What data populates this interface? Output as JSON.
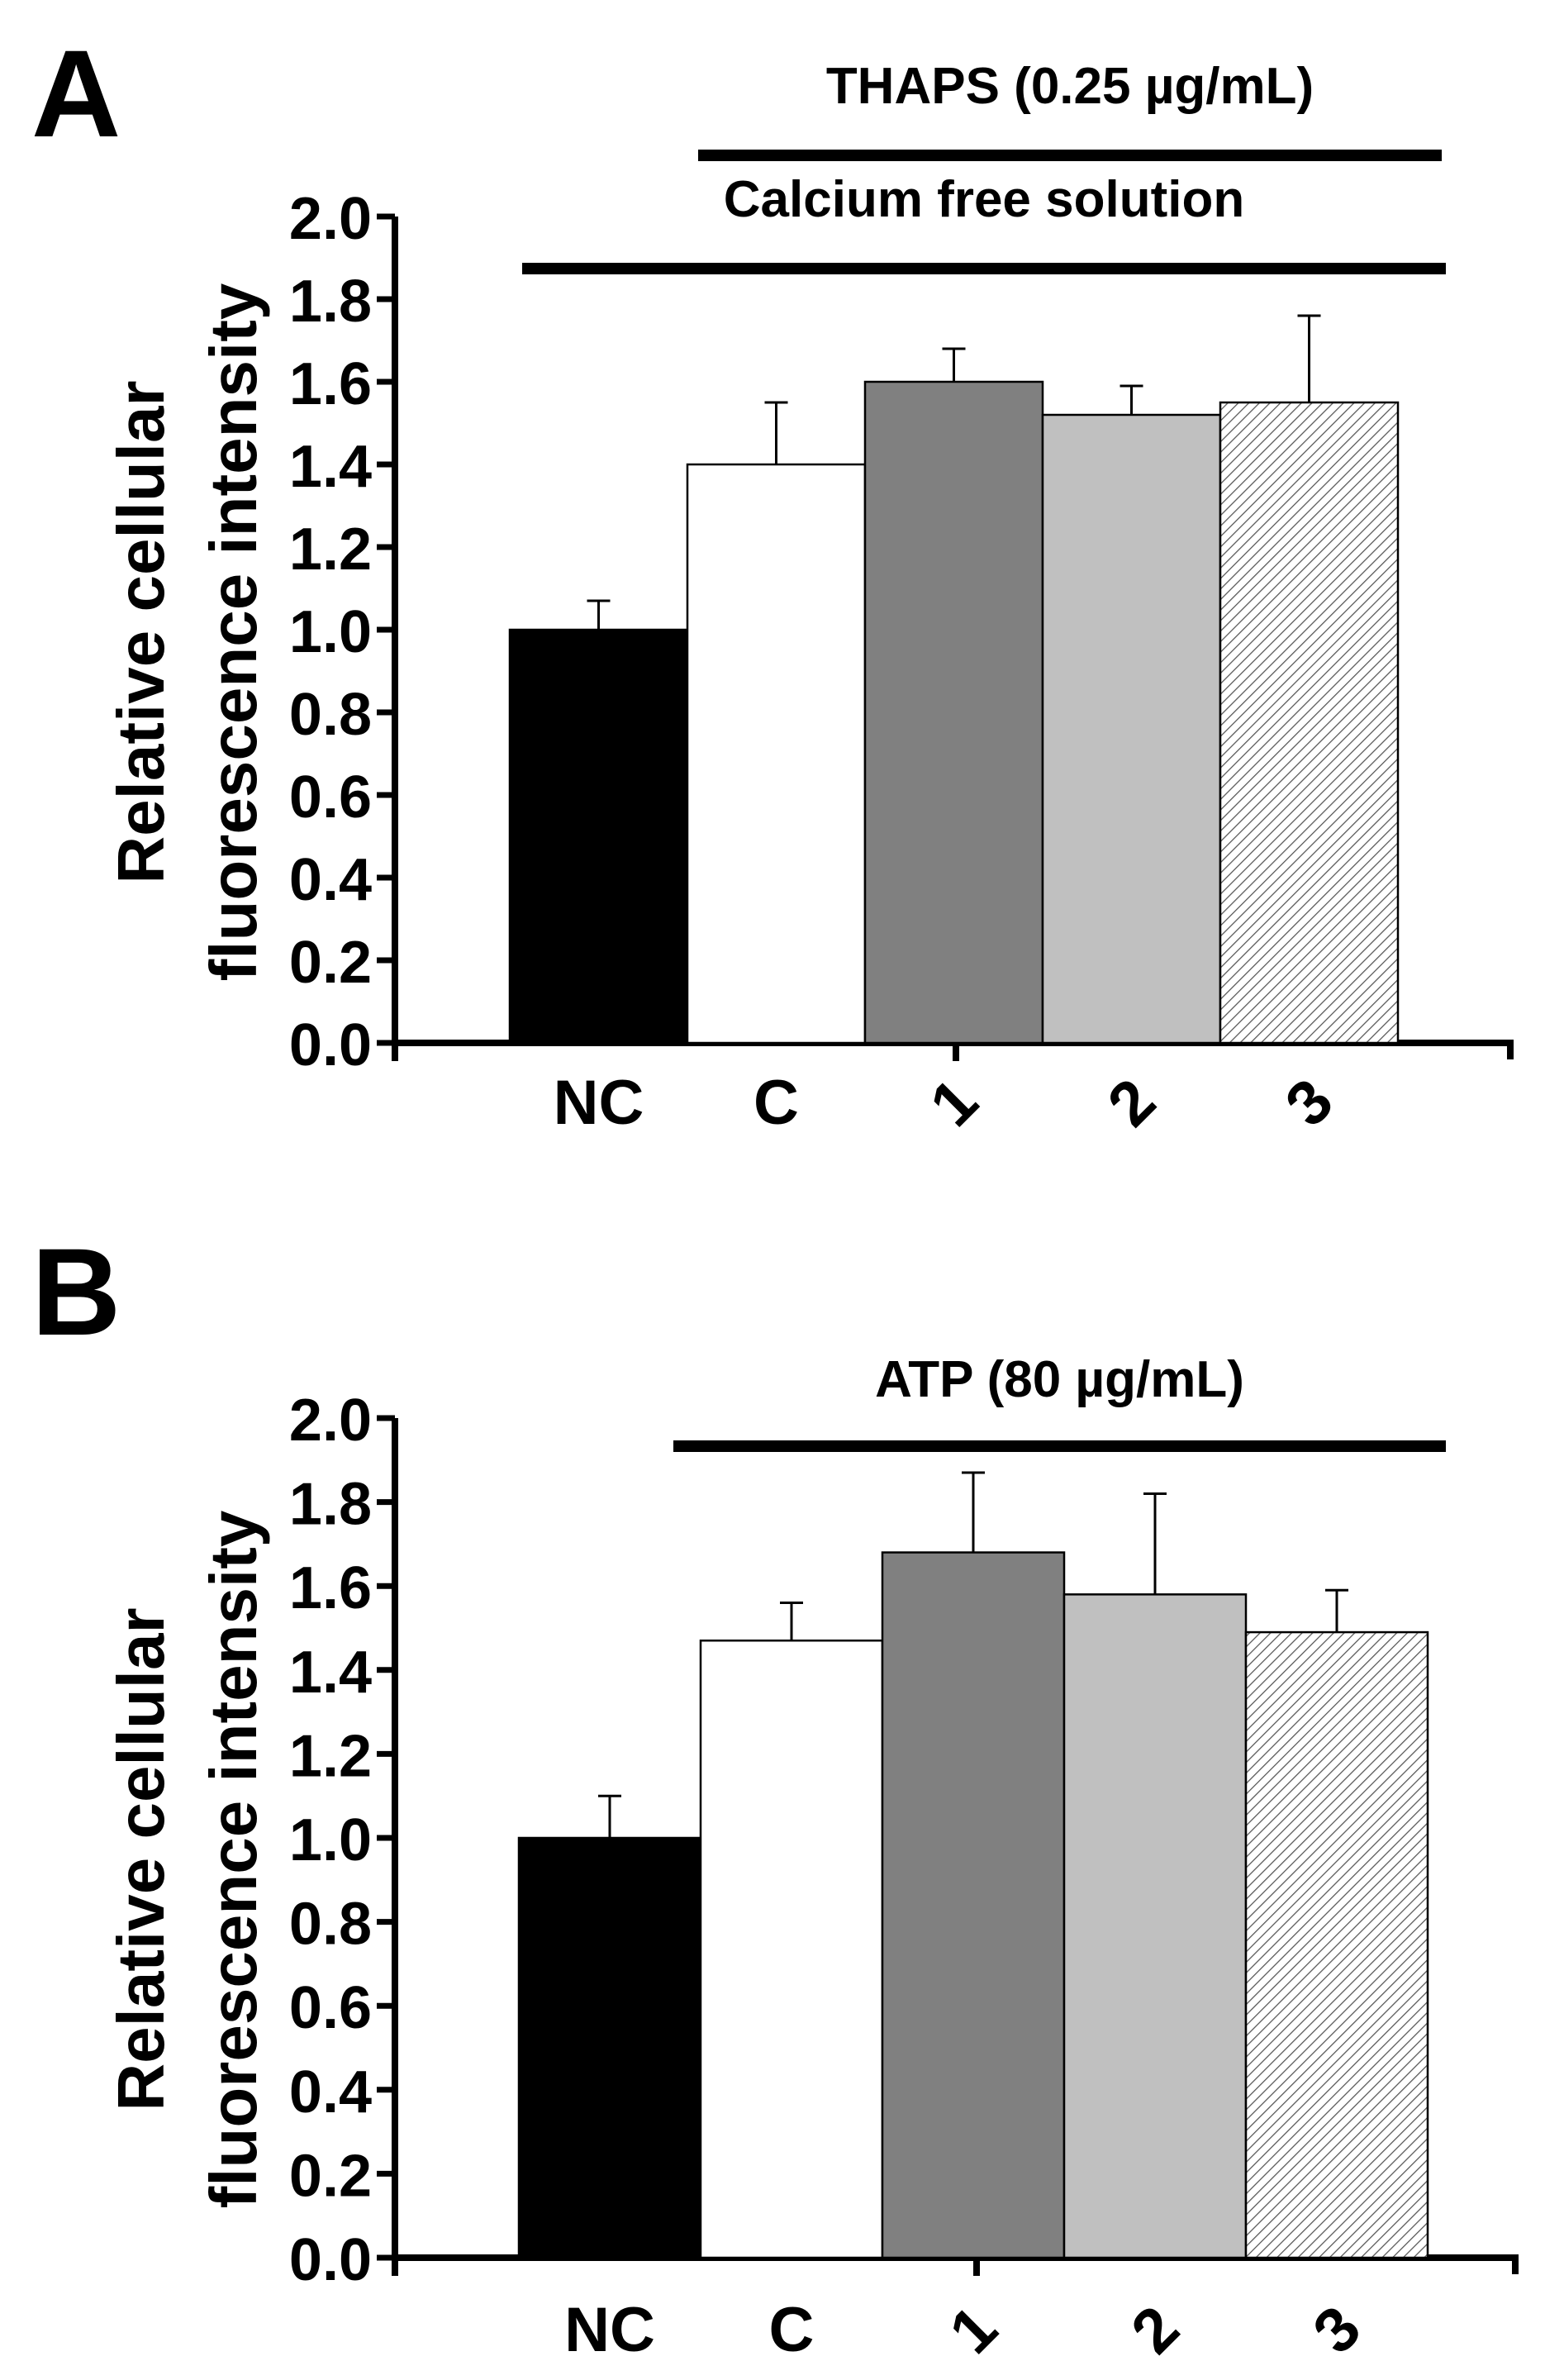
{
  "chart_data": [
    {
      "panel_label": "A",
      "type": "bar",
      "categories": [
        "NC",
        "C",
        "1",
        "2",
        "3"
      ],
      "values": [
        1.0,
        1.4,
        1.6,
        1.52,
        1.55
      ],
      "errors": [
        0.07,
        0.15,
        0.08,
        0.07,
        0.21
      ],
      "fills": [
        "#000000",
        "#ffffff",
        "#808080",
        "#c0c0c0",
        "hatch"
      ],
      "ylabel_line1": "Relative cellular",
      "ylabel_line2": "fluorescence intensity",
      "xlabel": "",
      "ylim": [
        0,
        2.0
      ],
      "ytick_step": 0.2,
      "ytick_labels": [
        "0.0",
        "0.2",
        "0.4",
        "0.6",
        "0.8",
        "1.0",
        "1.2",
        "1.4",
        "1.6",
        "1.8",
        "2.0"
      ],
      "treatment_bars": [
        {
          "label": "THAPS (0.25 µg/mL)",
          "from_category": 1,
          "to_category": 4
        },
        {
          "label": "Calcium free solution",
          "from_category": 0,
          "to_category": 4
        }
      ]
    },
    {
      "panel_label": "B",
      "type": "bar",
      "categories": [
        "NC",
        "C",
        "1",
        "2",
        "3"
      ],
      "values": [
        1.0,
        1.47,
        1.68,
        1.58,
        1.49
      ],
      "errors": [
        0.1,
        0.09,
        0.19,
        0.24,
        0.1
      ],
      "fills": [
        "#000000",
        "#ffffff",
        "#808080",
        "#c0c0c0",
        "hatch"
      ],
      "ylabel_line1": "Relative cellular",
      "ylabel_line2": "fluorescence intensity",
      "xlabel": "",
      "ylim": [
        0,
        2.0
      ],
      "ytick_step": 0.2,
      "ytick_labels": [
        "0.0",
        "0.2",
        "0.4",
        "0.6",
        "0.8",
        "1.0",
        "1.2",
        "1.4",
        "1.6",
        "1.8",
        "2.0"
      ],
      "treatment_bars": [
        {
          "label": "ATP (80 µg/mL)",
          "from_category": 1,
          "to_category": 4
        }
      ]
    }
  ]
}
